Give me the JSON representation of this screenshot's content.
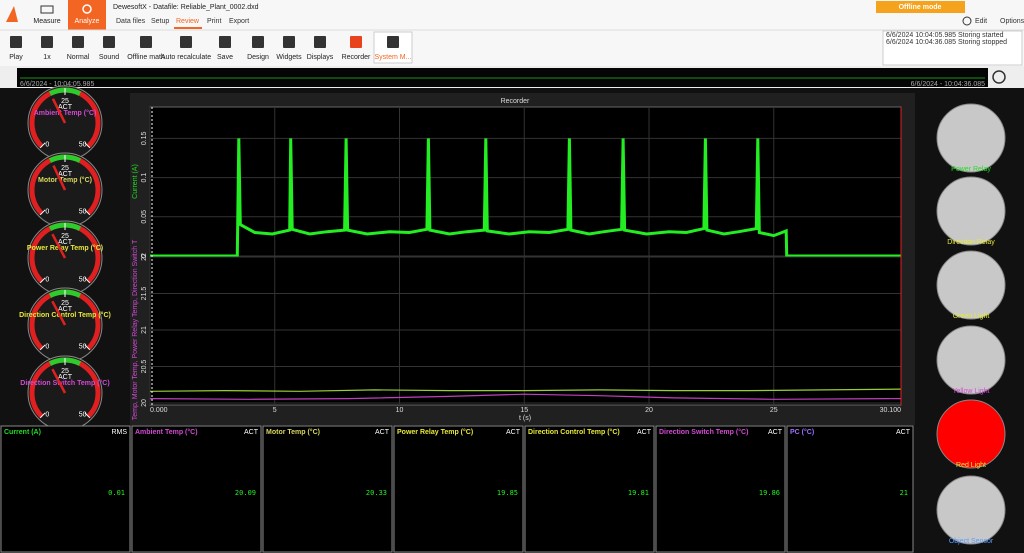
{
  "header": {
    "measure": "Measure",
    "analyze": "Analyze",
    "title": "DewesoftX - Datafile: Reliable_Plant_0002.dxd",
    "tabs": [
      "Data files",
      "Setup",
      "Review",
      "Print",
      "Export"
    ],
    "active_tab": 2,
    "offline_mode": "Offline mode",
    "edit": "Edit",
    "options": "Options"
  },
  "toolbar": {
    "buttons": [
      "Play",
      "1x",
      "Normal",
      "Sound",
      "Offline math",
      "Auto recalculate",
      "Save",
      "Design",
      "Widgets",
      "Displays",
      "Recorder",
      "System M..."
    ],
    "active_button": 11
  },
  "log": [
    "6/6/2024 10:04:05.985 Storing started",
    "6/6/2024 10:04:36.085 Storing stopped"
  ],
  "overview": {
    "start": "6/6/2024 - 10:04:05.985",
    "end": "6/6/2024 - 10:04:36.085"
  },
  "gauges": [
    {
      "label": "Ambient Temp (°C)",
      "color": "#d34ad3",
      "mode": "ACT",
      "ticks": [
        0,
        25,
        50
      ],
      "value": 20.09
    },
    {
      "label": "Motor Temp (°C)",
      "color": "#d8d860",
      "mode": "ACT",
      "ticks": [
        0,
        25,
        50
      ],
      "value": 20.33
    },
    {
      "label": "Power Relay Temp (°C)",
      "color": "#e8e83a",
      "mode": "ACT",
      "ticks": [
        0,
        25,
        50
      ],
      "value": 19.85
    },
    {
      "label": "Direction Control Temp (°C)",
      "color": "#e8e83a",
      "mode": "ACT",
      "ticks": [
        0,
        25,
        50
      ],
      "value": 19.81
    },
    {
      "label": "Direction Switch Temp (°C)",
      "color": "#d34ad3",
      "mode": "ACT",
      "ticks": [
        0,
        25,
        50
      ],
      "value": 19.86
    }
  ],
  "chart_data": {
    "type": "line",
    "title": "Recorder",
    "xlabel": "t (s)",
    "xlim": [
      0,
      30.1
    ],
    "xticks": [
      {
        "value": 0,
        "label": "0.000"
      },
      5,
      10,
      15,
      20,
      25,
      {
        "value": 30.1,
        "label": "30.100"
      }
    ],
    "panels": [
      {
        "ylabel": "Current (A)",
        "ylabel_color": "#22dd22",
        "ylim": [
          0,
          0.19
        ],
        "yticks": [
          0,
          0.05,
          0.1,
          0.15
        ],
        "series": [
          {
            "color": "#22ee22",
            "x": [
              0,
              3.5,
              3.56,
              3.62,
              4.2,
              4.9,
              5.6,
              5.64,
              5.7,
              6.4,
              7.1,
              7.8,
              7.86,
              7.92,
              8.7,
              9.6,
              10.4,
              11.1,
              11.16,
              11.22,
              12.0,
              12.7,
              13.4,
              13.46,
              13.52,
              14.4,
              15.2,
              16.0,
              16.75,
              16.81,
              16.87,
              17.6,
              18.2,
              18.9,
              18.96,
              19.02,
              19.9,
              20.8,
              21.5,
              22.2,
              22.26,
              22.32,
              23.0,
              23.6,
              24.3,
              24.36,
              24.42,
              25.0,
              25.5,
              25.52,
              30.1
            ],
            "values": [
              0,
              0,
              0.15,
              0.04,
              0.03,
              0.028,
              0.033,
              0.15,
              0.034,
              0.028,
              0.031,
              0.033,
              0.15,
              0.033,
              0.028,
              0.031,
              0.03,
              0.034,
              0.15,
              0.033,
              0.028,
              0.031,
              0.033,
              0.15,
              0.032,
              0.028,
              0.031,
              0.03,
              0.034,
              0.15,
              0.033,
              0.028,
              0.031,
              0.034,
              0.15,
              0.033,
              0.028,
              0.031,
              0.03,
              0.035,
              0.15,
              0.033,
              0.028,
              0.031,
              0.035,
              0.15,
              0.03,
              0.026,
              0.032,
              0,
              0
            ]
          }
        ]
      },
      {
        "ylabel": "Temp, Motor Temp, Power Relay Temp, Direction Switch T",
        "ylabel_color": "#d34ad3",
        "ylim": [
          20,
          22
        ],
        "yticks": [
          20,
          20.5,
          21,
          21.5,
          22
        ],
        "series": [
          {
            "color": "#9acd32",
            "x": [
              0,
              3,
              6,
              9,
              12,
              15,
              18,
              21,
              24,
              27,
              30.1
            ],
            "values": [
              20.16,
              20.17,
              20.16,
              20.18,
              20.17,
              20.17,
              20.18,
              20.17,
              20.17,
              20.18,
              20.19
            ]
          },
          {
            "color": "#c040c0",
            "x": [
              0,
              4,
              8,
              12,
              15,
              18,
              21,
              25,
              30.1
            ],
            "values": [
              20.06,
              20.05,
              20.06,
              20.09,
              20.12,
              20.1,
              20.07,
              20.05,
              20.06
            ]
          }
        ]
      }
    ]
  },
  "displays": [
    {
      "label": "Current (A)",
      "color": "#22dd22",
      "mode": "RMS",
      "value": "0.01"
    },
    {
      "label": "Ambient Temp (°C)",
      "color": "#d34ad3",
      "mode": "ACT",
      "value": "20.09"
    },
    {
      "label": "Motor Temp (°C)",
      "color": "#d8d860",
      "mode": "ACT",
      "value": "20.33"
    },
    {
      "label": "Power Relay Temp (°C)",
      "color": "#e8e83a",
      "mode": "ACT",
      "value": "19.85"
    },
    {
      "label": "Direction Control Temp (°C)",
      "color": "#e8e83a",
      "mode": "ACT",
      "value": "19.81"
    },
    {
      "label": "Direction Switch Temp (°C)",
      "color": "#d34ad3",
      "mode": "ACT",
      "value": "19.86"
    },
    {
      "label": "PC (°C)",
      "color": "#a070ff",
      "mode": "ACT",
      "value": "21"
    }
  ],
  "lamps": [
    {
      "label": "Power Relay",
      "color": "#22dd22",
      "on": false
    },
    {
      "label": "Direction Relay",
      "color": "#e8e83a",
      "on": false
    },
    {
      "label": "Green Light",
      "color": "#e8e83a",
      "on": false
    },
    {
      "label": "Yellow Light",
      "color": "#d34ad3",
      "on": false
    },
    {
      "label": "Red Light",
      "color": "#e8e83a",
      "on": true
    },
    {
      "label": "Object Sensor",
      "color": "#5a9aff",
      "on": false
    }
  ]
}
